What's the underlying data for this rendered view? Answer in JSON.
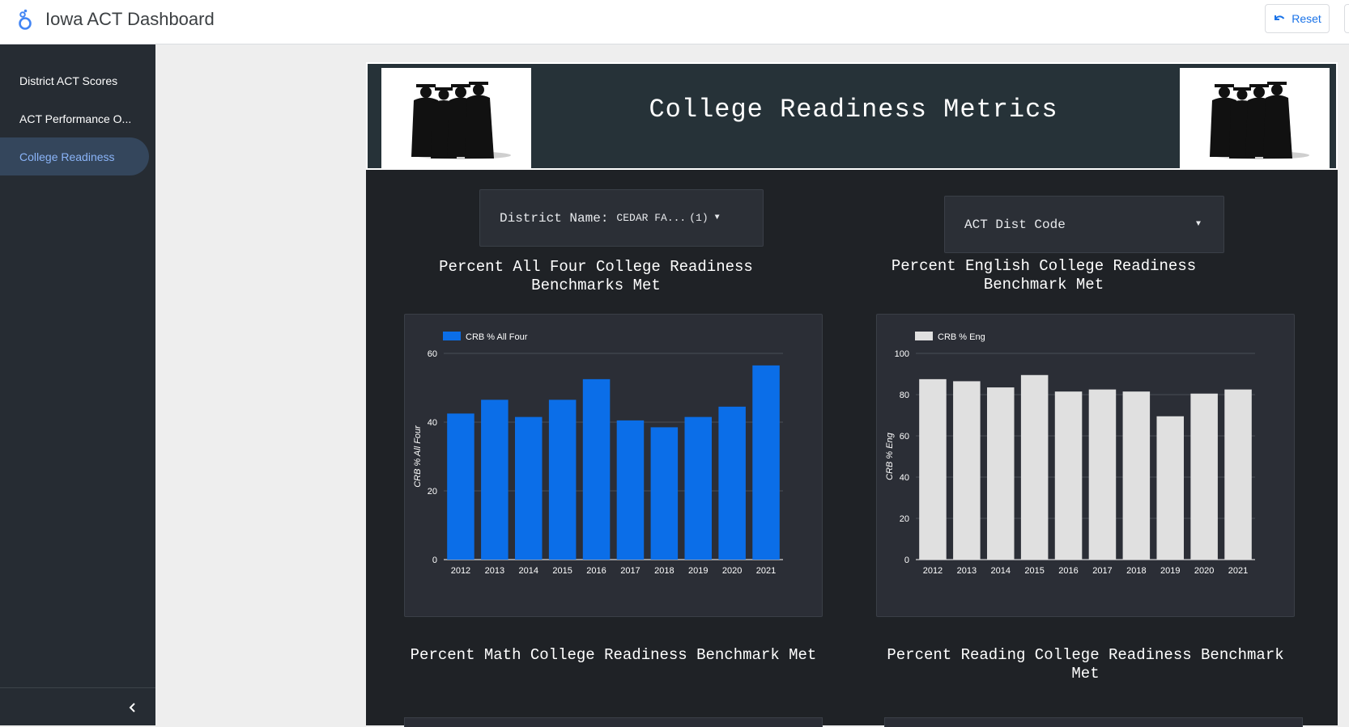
{
  "app": {
    "title": "Iowa ACT Dashboard",
    "reset_label": "Reset",
    "accent": "#1a73e8"
  },
  "sidebar": {
    "items": [
      {
        "label": "District ACT Scores",
        "active": false
      },
      {
        "label": "ACT Performance O...",
        "active": false
      },
      {
        "label": "College Readiness",
        "active": true
      }
    ],
    "collapse_icon": "chevron-left-icon"
  },
  "banner": {
    "title": "College Readiness Metrics",
    "image": "graduates-silhouette"
  },
  "controls": {
    "district": {
      "label": "District Name:",
      "selected": "CEDAR FA...",
      "count": "(1)"
    },
    "dist_code": {
      "label": "ACT Dist Code"
    }
  },
  "charts": {
    "all_four_title": "Percent All Four College Readiness Benchmarks Met",
    "english_title": "Percent English College Readiness Benchmark Met",
    "math_title": "Percent Math College Readiness Benchmark Met",
    "reading_title": "Percent Reading College Readiness Benchmark Met"
  },
  "chart_data": [
    {
      "type": "bar",
      "legend": "CRB % All Four",
      "ylabel": "CRB % All Four",
      "xlabel": "",
      "color": "#0b6ee8",
      "categories": [
        "2012",
        "2013",
        "2014",
        "2015",
        "2016",
        "2017",
        "2018",
        "2019",
        "2020",
        "2021"
      ],
      "values": [
        42.5,
        46.5,
        41.5,
        46.5,
        52.5,
        40.5,
        38.5,
        41.5,
        44.5,
        56.5
      ],
      "ylim": [
        0,
        60
      ],
      "yticks": [
        0,
        20,
        40,
        60
      ],
      "grid": true,
      "legend_position": "top-left"
    },
    {
      "type": "bar",
      "legend": "CRB % Eng",
      "ylabel": "CRB % Eng",
      "xlabel": "",
      "color": "#e0e0e0",
      "categories": [
        "2012",
        "2013",
        "2014",
        "2015",
        "2016",
        "2017",
        "2018",
        "2019",
        "2020",
        "2021"
      ],
      "values": [
        87.5,
        86.5,
        83.5,
        89.5,
        81.5,
        82.5,
        81.5,
        69.5,
        80.5,
        82.5
      ],
      "ylim": [
        0,
        100
      ],
      "yticks": [
        0,
        20,
        40,
        60,
        80,
        100
      ],
      "grid": true,
      "legend_position": "top-left"
    }
  ]
}
